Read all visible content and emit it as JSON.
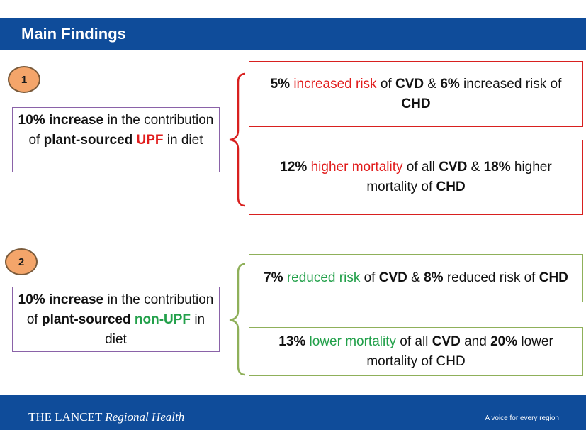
{
  "header": {
    "title": "Main Findings"
  },
  "finding1": {
    "number": "1",
    "source": {
      "p1": "10% increase",
      "p2": " in the contribution of ",
      "p3": "plant-sourced ",
      "p4": "UPF",
      "p5": " in diet"
    },
    "result1": {
      "p1": "5%",
      "p2": " increased risk",
      "p3": " of ",
      "p4": "CVD",
      "p5": " & ",
      "p6": "6%",
      "p7": " increased risk of ",
      "p8": "CHD"
    },
    "result2": {
      "p1": "12%",
      "p2": " higher mortality",
      "p3": " of all ",
      "p4": "CVD",
      "p5": " & ",
      "p6": "18%",
      "p7": " higher mortality of ",
      "p8": "CHD"
    }
  },
  "finding2": {
    "number": "2",
    "source": {
      "p1": "10% increase",
      "p2": " in the contribution of ",
      "p3": "plant-sourced ",
      "p4": "non-UPF",
      "p5": " in diet"
    },
    "result1": {
      "p1": "7%",
      "p2": " reduced risk",
      "p3": " of ",
      "p4": "CVD",
      "p5": " & ",
      "p6": "8%",
      "p7": " reduced risk of ",
      "p8": "CHD"
    },
    "result2": {
      "p1": "13%",
      "p2": " lower mortality",
      "p3": " of all ",
      "p4": "CVD",
      "p5": " and ",
      "p6": "20%",
      "p7": " lower mortality of CHD"
    }
  },
  "footer": {
    "brand_main": "THE LANCET",
    "brand_sub": "Regional Health",
    "tagline": "A voice for every region"
  },
  "colors": {
    "header": "#0f4c9a",
    "red": "#e11c1c",
    "green": "#22a04a",
    "badge": "#f4a56a"
  }
}
